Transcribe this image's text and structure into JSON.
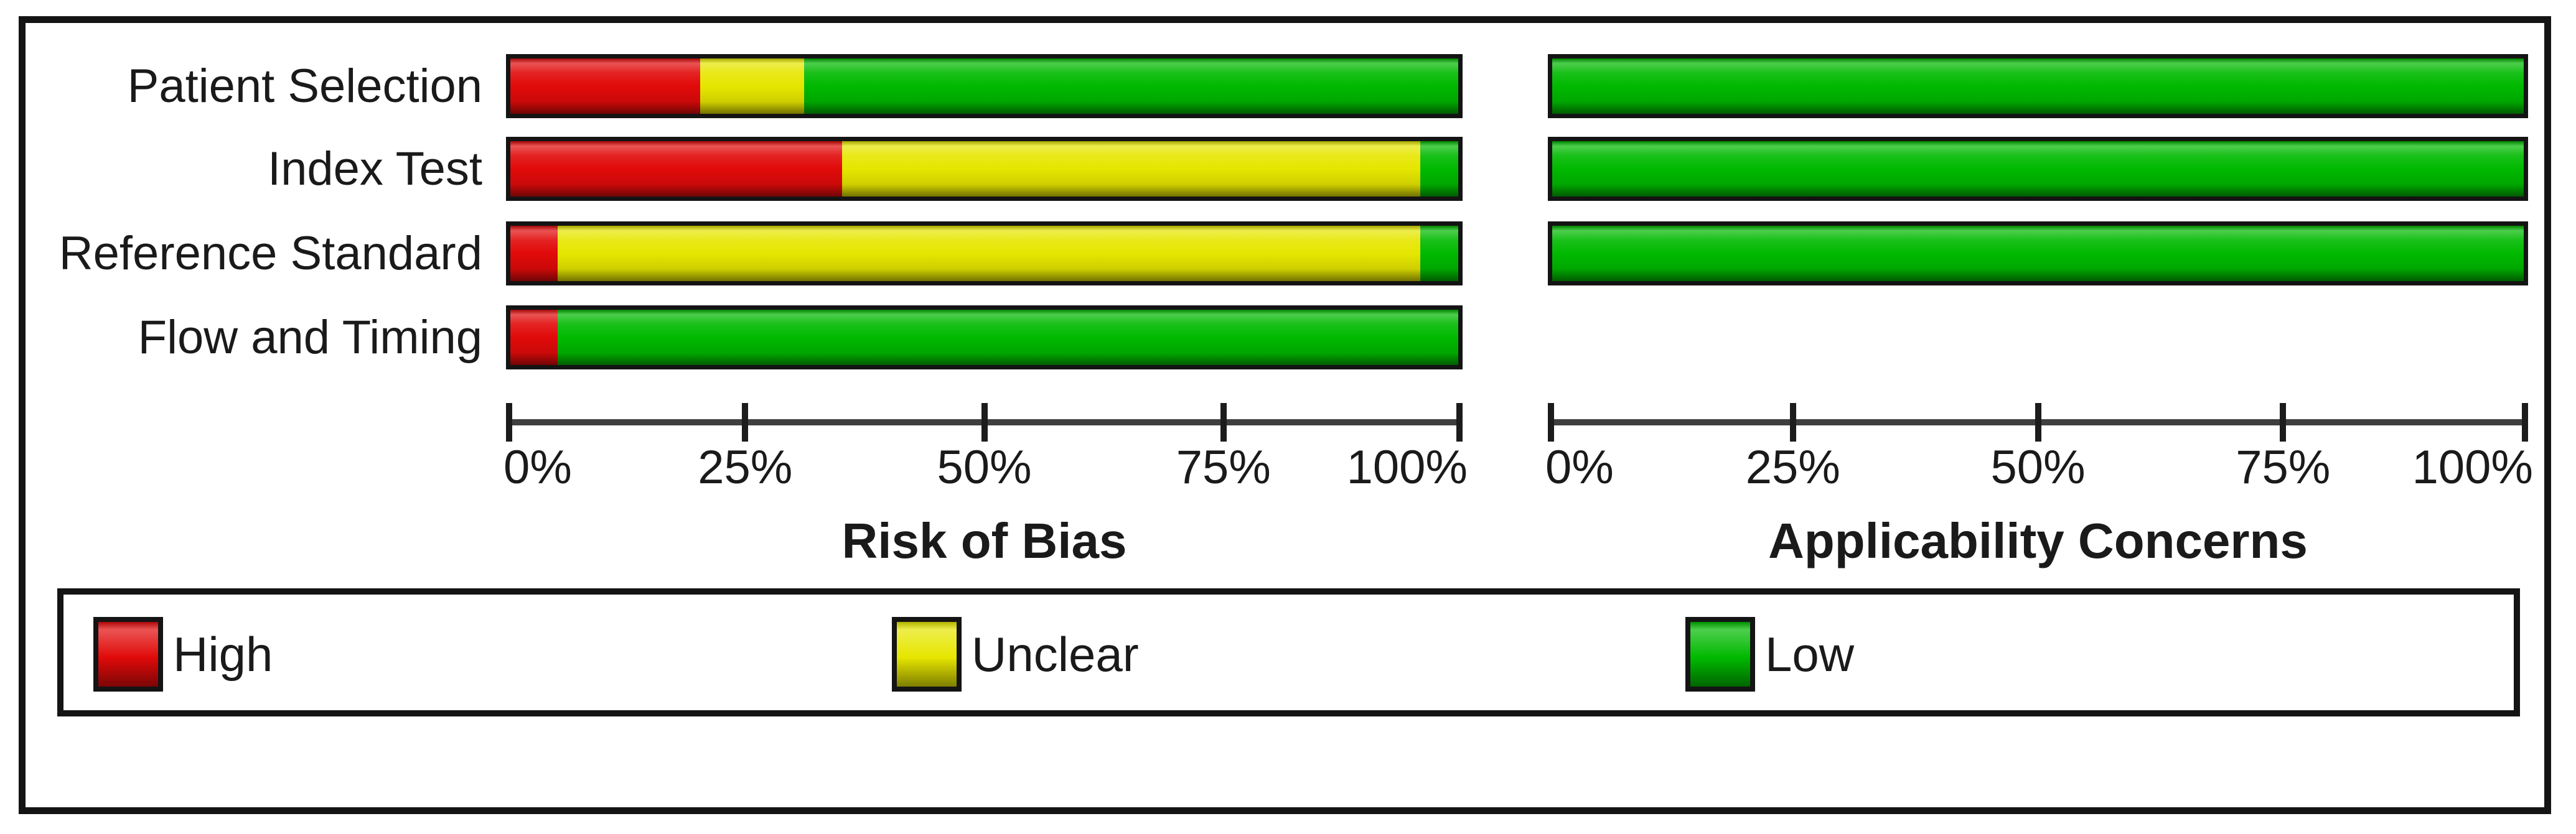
{
  "legend": {
    "position": "bottom",
    "items": [
      {
        "label": "High",
        "color": "#e10a0a"
      },
      {
        "label": "Unclear",
        "color": "#e6e600"
      },
      {
        "label": "Low",
        "color": "#00b900"
      }
    ]
  },
  "chart_data": [
    {
      "type": "bar",
      "stacked": true,
      "orientation": "horizontal",
      "title": "Risk of Bias",
      "categories": [
        "Patient Selection",
        "Index Test",
        "Reference Standard",
        "Flow and Timing"
      ],
      "series": [
        {
          "name": "High",
          "values": [
            20,
            35,
            5,
            5
          ]
        },
        {
          "name": "Unclear",
          "values": [
            11,
            61,
            91,
            0
          ]
        },
        {
          "name": "Low",
          "values": [
            69,
            4,
            4,
            95
          ]
        }
      ],
      "xlim": [
        0,
        100
      ],
      "ticks": [
        "0%",
        "25%",
        "50%",
        "75%",
        "100%"
      ],
      "grid": false
    },
    {
      "type": "bar",
      "stacked": true,
      "orientation": "horizontal",
      "title": "Applicability Concerns",
      "categories": [
        "Patient Selection",
        "Index Test",
        "Reference Standard",
        "Flow and Timing"
      ],
      "series": [
        {
          "name": "High",
          "values": [
            0,
            0,
            0,
            null
          ]
        },
        {
          "name": "Unclear",
          "values": [
            0,
            0,
            0,
            null
          ]
        },
        {
          "name": "Low",
          "values": [
            100,
            100,
            100,
            null
          ]
        }
      ],
      "xlim": [
        0,
        100
      ],
      "ticks": [
        "0%",
        "25%",
        "50%",
        "75%",
        "100%"
      ],
      "grid": false
    }
  ]
}
